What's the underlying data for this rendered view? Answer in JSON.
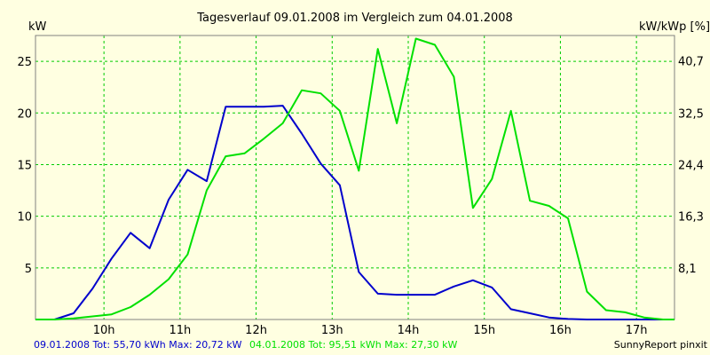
{
  "chart_data": {
    "type": "line",
    "title": "Tagesverlauf 09.01.2008 im Vergleich zum 04.01.2008",
    "ylabel_left": "kW",
    "ylabel_right": "kW/kWp [%]",
    "x_range": [
      9.1,
      17.5
    ],
    "ylim_left": [
      0,
      27.5
    ],
    "ylim_right": [
      0,
      44.7
    ],
    "x_ticks": [
      10,
      11,
      12,
      13,
      14,
      15,
      16,
      17
    ],
    "x_tick_labels": [
      "10h",
      "11h",
      "12h",
      "13h",
      "14h",
      "15h",
      "16h",
      "17h"
    ],
    "y_ticks_left": [
      5,
      10,
      15,
      20,
      25
    ],
    "y_tick_labels_left": [
      "5",
      "10",
      "15",
      "20",
      "25"
    ],
    "y_ticks_right": [
      8.1,
      16.3,
      24.4,
      32.5,
      40.7
    ],
    "y_tick_labels_right": [
      "8,1",
      "16,3",
      "24,4",
      "32,5",
      "40,7"
    ],
    "grid": true,
    "series": [
      {
        "name": "09.01.2008",
        "color": "#0000cc",
        "x": [
          9.1,
          9.35,
          9.6,
          9.85,
          10.1,
          10.35,
          10.6,
          10.85,
          11.1,
          11.35,
          11.6,
          11.85,
          12.1,
          12.35,
          12.6,
          12.85,
          13.1,
          13.35,
          13.6,
          13.85,
          14.1,
          14.35,
          14.6,
          14.85,
          15.1,
          15.35,
          15.6,
          15.85,
          16.1,
          16.35,
          16.6,
          16.85,
          17.1,
          17.35,
          17.5
        ],
        "values": [
          0,
          0,
          0.6,
          3.0,
          5.9,
          8.4,
          6.9,
          11.6,
          14.5,
          13.4,
          20.6,
          20.6,
          20.6,
          20.7,
          18.0,
          15.1,
          13.0,
          4.6,
          2.5,
          2.4,
          2.4,
          2.4,
          3.2,
          3.8,
          3.1,
          1.0,
          0.6,
          0.2,
          0.05,
          0,
          0,
          0,
          0,
          0,
          0
        ]
      },
      {
        "name": "04.01.2008",
        "color": "#00e000",
        "x": [
          9.1,
          9.35,
          9.6,
          9.85,
          10.1,
          10.35,
          10.6,
          10.85,
          11.1,
          11.35,
          11.6,
          11.85,
          12.1,
          12.35,
          12.6,
          12.85,
          13.1,
          13.35,
          13.6,
          13.85,
          14.1,
          14.35,
          14.6,
          14.85,
          15.1,
          15.35,
          15.6,
          15.85,
          16.1,
          16.35,
          16.6,
          16.85,
          17.1,
          17.35,
          17.5
        ],
        "values": [
          0,
          0,
          0.1,
          0.3,
          0.5,
          1.2,
          2.4,
          3.9,
          6.3,
          12.5,
          15.8,
          16.1,
          17.5,
          19.0,
          22.2,
          21.9,
          20.2,
          14.4,
          26.2,
          19.0,
          27.2,
          26.6,
          23.5,
          10.8,
          13.6,
          20.2,
          11.5,
          11.0,
          9.8,
          2.7,
          0.9,
          0.7,
          0.2,
          0,
          0
        ]
      }
    ],
    "footer_left": "09.01.2008 Tot: 55,70 kWh Max: 20,72 kW",
    "footer_mid": "04.01.2008 Tot: 95,51 kWh Max: 27,30 kW",
    "footer_right": "SunnyReport pinxit",
    "colors": {
      "background": "#ffffe1",
      "grid": "#00cc00",
      "axis": "#808080"
    }
  }
}
